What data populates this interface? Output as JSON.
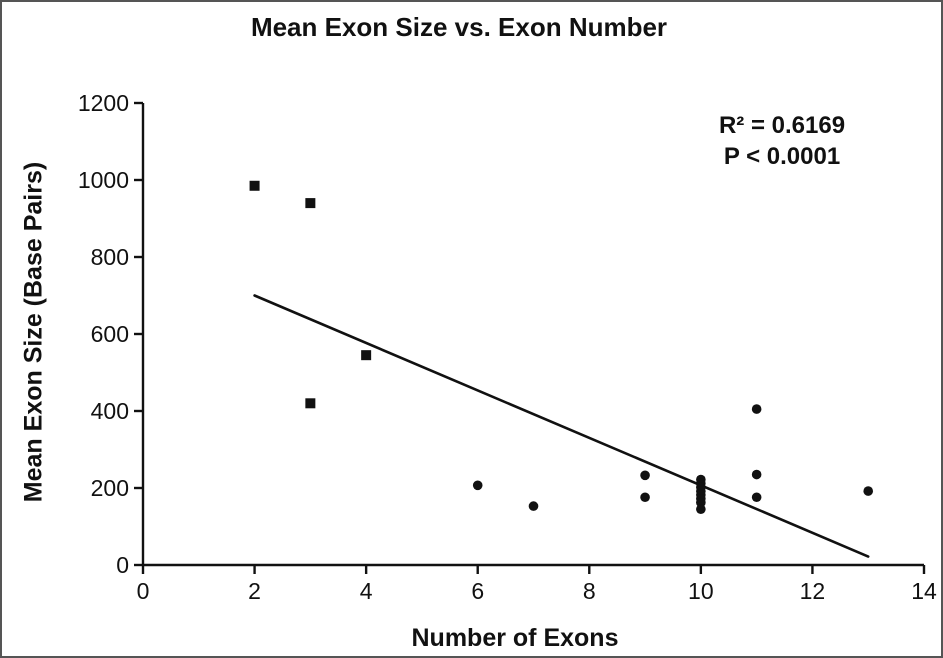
{
  "chart_data": {
    "type": "scatter",
    "title": "Mean Exon Size vs. Exon Number",
    "xlabel": "Number of Exons",
    "ylabel": "Mean Exon Size (Base Pairs)",
    "xlim": [
      0,
      14
    ],
    "ylim": [
      0,
      1200
    ],
    "xticks": [
      0,
      2,
      4,
      6,
      8,
      10,
      12,
      14
    ],
    "yticks": [
      0,
      200,
      400,
      600,
      800,
      1000,
      1200
    ],
    "grid": false,
    "legend": "none",
    "series": [
      {
        "name": "square-markers",
        "marker": "square",
        "points": [
          [
            2,
            985
          ],
          [
            3,
            940
          ],
          [
            3,
            420
          ],
          [
            4,
            545
          ]
        ]
      },
      {
        "name": "circle-markers",
        "marker": "circle",
        "points": [
          [
            6,
            207
          ],
          [
            7,
            153
          ],
          [
            9,
            233
          ],
          [
            9,
            176
          ],
          [
            10,
            222
          ],
          [
            10,
            212
          ],
          [
            10,
            202
          ],
          [
            10,
            192
          ],
          [
            10,
            182
          ],
          [
            10,
            172
          ],
          [
            10,
            162
          ],
          [
            10,
            145
          ],
          [
            11,
            405
          ],
          [
            11,
            235
          ],
          [
            11,
            176
          ],
          [
            13,
            192
          ]
        ]
      }
    ],
    "trendline": {
      "x1": 2,
      "y1": 700,
      "x2": 13,
      "y2": 22
    },
    "annotation": {
      "r_squared": "R² = 0.6169",
      "p_value": "P < 0.0001"
    },
    "marker_color": "#111111",
    "line_color": "#111111",
    "axis_color": "#111111"
  }
}
